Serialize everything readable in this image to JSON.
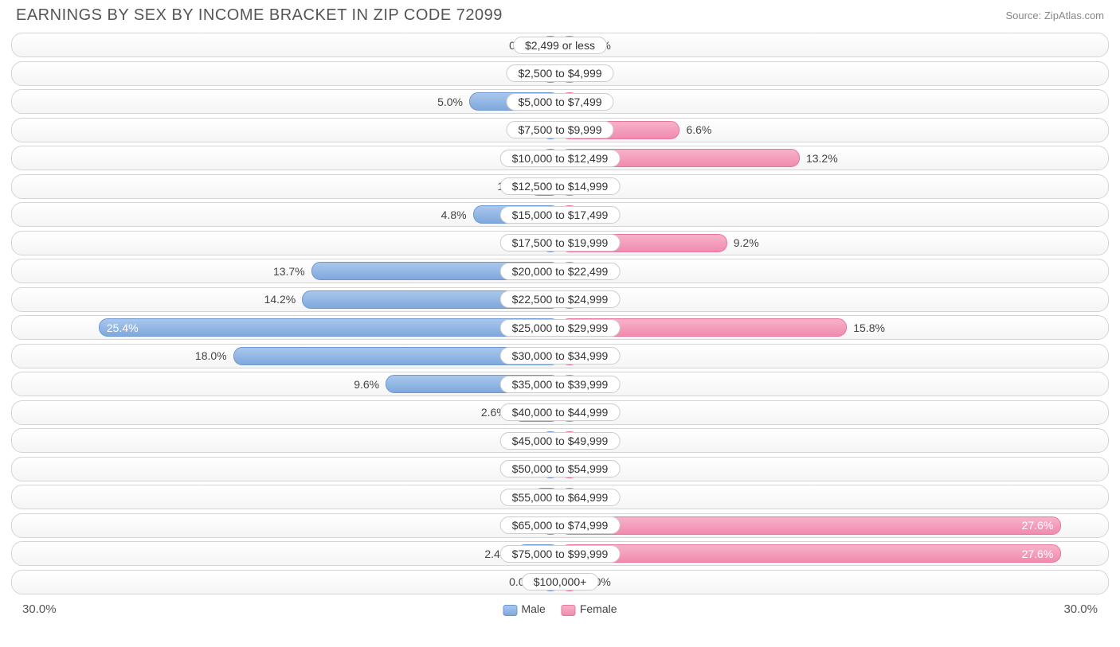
{
  "header": {
    "title": "EARNINGS BY SEX BY INCOME BRACKET IN ZIP CODE 72099",
    "source": "Source: ZipAtlas.com"
  },
  "chart": {
    "type": "diverging-bar",
    "axis_max": 30.0,
    "axis_left_label": "30.0%",
    "axis_right_label": "30.0%",
    "min_bar_pct": 3.5,
    "colors": {
      "male_fill_top": "#a9c7ed",
      "male_fill_bottom": "#7fa8dc",
      "male_border": "#6c98cf",
      "female_fill_top": "#f7b3c8",
      "female_fill_bottom": "#f18ab0",
      "female_border": "#e676a0",
      "row_border": "#d5d5d5",
      "text": "#444444",
      "background": "#ffffff"
    },
    "legend": {
      "male": "Male",
      "female": "Female"
    },
    "rows": [
      {
        "category": "$2,499 or less",
        "male": 0.0,
        "female": 0.0
      },
      {
        "category": "$2,500 to $4,999",
        "male": 0.0,
        "female": 0.0
      },
      {
        "category": "$5,000 to $7,499",
        "male": 5.0,
        "female": 0.0
      },
      {
        "category": "$7,500 to $9,999",
        "male": 0.0,
        "female": 6.6
      },
      {
        "category": "$10,000 to $12,499",
        "male": 0.0,
        "female": 13.2
      },
      {
        "category": "$12,500 to $14,999",
        "male": 1.7,
        "female": 0.0
      },
      {
        "category": "$15,000 to $17,499",
        "male": 4.8,
        "female": 0.0
      },
      {
        "category": "$17,500 to $19,999",
        "male": 0.0,
        "female": 9.2
      },
      {
        "category": "$20,000 to $22,499",
        "male": 13.7,
        "female": 0.0
      },
      {
        "category": "$22,500 to $24,999",
        "male": 14.2,
        "female": 0.0
      },
      {
        "category": "$25,000 to $29,999",
        "male": 25.4,
        "female": 15.8
      },
      {
        "category": "$30,000 to $34,999",
        "male": 18.0,
        "female": 0.0
      },
      {
        "category": "$35,000 to $39,999",
        "male": 9.6,
        "female": 0.0
      },
      {
        "category": "$40,000 to $44,999",
        "male": 2.6,
        "female": 0.0
      },
      {
        "category": "$45,000 to $49,999",
        "male": 1.0,
        "female": 0.0
      },
      {
        "category": "$50,000 to $54,999",
        "male": 0.0,
        "female": 0.0
      },
      {
        "category": "$55,000 to $64,999",
        "male": 1.5,
        "female": 0.0
      },
      {
        "category": "$65,000 to $74,999",
        "male": 0.0,
        "female": 27.6
      },
      {
        "category": "$75,000 to $99,999",
        "male": 2.4,
        "female": 27.6
      },
      {
        "category": "$100,000+",
        "male": 0.0,
        "female": 0.0
      }
    ]
  }
}
